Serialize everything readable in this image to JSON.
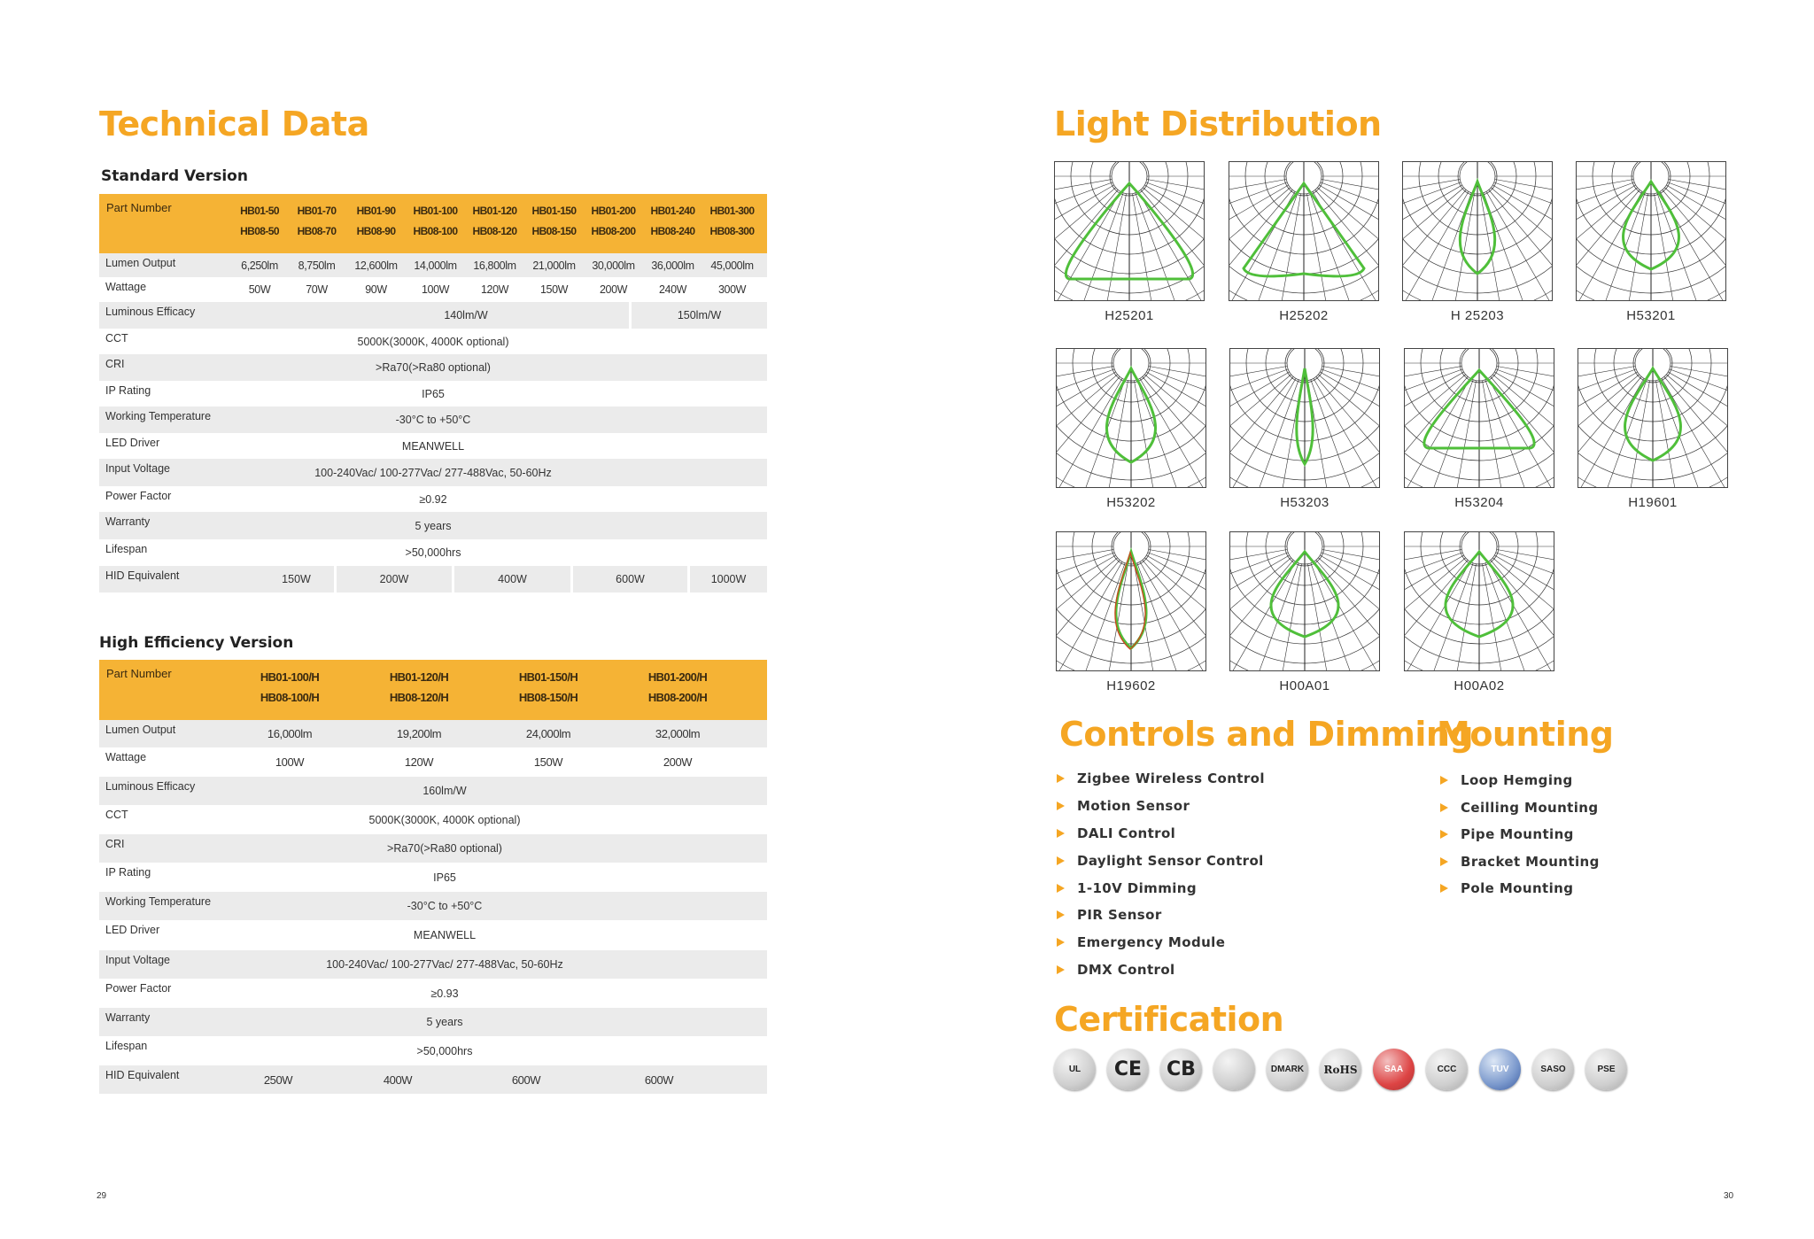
{
  "left": {
    "title": "Technical Data",
    "standard": {
      "title": "Standard Version",
      "part_label": "Part Number",
      "parts_row1": [
        "HB01-50",
        "HB01-70",
        "HB01-90",
        "HB01-100",
        "HB01-120",
        "HB01-150",
        "HB01-200",
        "HB01-240",
        "HB01-300"
      ],
      "parts_row2": [
        "HB08-50",
        "HB08-70",
        "HB08-90",
        "HB08-100",
        "HB08-120",
        "HB08-150",
        "HB08-200",
        "HB08-240",
        "HB08-300"
      ],
      "lumen_label": "Lumen Output",
      "lumen": [
        "6,250lm",
        "8,750lm",
        "12,600lm",
        "14,000lm",
        "16,800lm",
        "21,000lm",
        "30,000lm",
        "36,000lm",
        "45,000lm"
      ],
      "wattage_label": "Wattage",
      "wattage": [
        "50W",
        "70W",
        "90W",
        "100W",
        "120W",
        "150W",
        "200W",
        "240W",
        "300W"
      ],
      "efficacy_label": "Luminous Efficacy",
      "efficacy_a": "140lm/W",
      "efficacy_b": "150lm/W",
      "cct_label": "CCT",
      "cct": "5000K(3000K, 4000K optional)",
      "cri_label": "CRI",
      "cri": ">Ra70(>Ra80 optional)",
      "ip_label": "IP Rating",
      "ip": "IP65",
      "temp_label": "Working Temperature",
      "temp": "-30°C  to  +50°C",
      "driver_label": "LED Driver",
      "driver": "MEANWELL",
      "voltage_label": "Input Voltage",
      "voltage": "100-240Vac/ 100-277Vac/ 277-488Vac, 50-60Hz",
      "pf_label": "Power Factor",
      "pf": "≥0.92",
      "warranty_label": "Warranty",
      "warranty": "5 years",
      "lifespan_label": "Lifespan",
      "lifespan": ">50,000hrs",
      "hid_label": "HID Equivalent",
      "hid": [
        "150W",
        "200W",
        "400W",
        "600W",
        "1000W"
      ]
    },
    "high": {
      "title": "High Efficiency Version",
      "part_label": "Part Number",
      "parts_row1": [
        "HB01-100/H",
        "HB01-120/H",
        "HB01-150/H",
        "HB01-200/H"
      ],
      "parts_row2": [
        "HB08-100/H",
        "HB08-120/H",
        "HB08-150/H",
        "HB08-200/H"
      ],
      "lumen_label": "Lumen Output",
      "lumen": [
        "16,000lm",
        "19,200lm",
        "24,000lm",
        "32,000lm"
      ],
      "wattage_label": "Wattage",
      "wattage": [
        "100W",
        "120W",
        "150W",
        "200W"
      ],
      "efficacy_label": "Luminous Efficacy",
      "efficacy": "160lm/W",
      "cct_label": "CCT",
      "cct": "5000K(3000K, 4000K optional)",
      "cri_label": "CRI",
      "cri": ">Ra70(>Ra80 optional)",
      "ip_label": "IP Rating",
      "ip": "IP65",
      "temp_label": "Working Temperature",
      "temp": "-30°C  to  +50°C",
      "driver_label": "LED Driver",
      "driver": "MEANWELL",
      "voltage_label": "Input Voltage",
      "voltage": "100-240Vac/ 100-277Vac/ 277-488Vac, 50-60Hz",
      "pf_label": "Power Factor",
      "pf": "≥0.93",
      "warranty_label": "Warranty",
      "warranty": "5 years",
      "lifespan_label": "Lifespan",
      "lifespan": ">50,000hrs",
      "hid_label": "HID Equivalent",
      "hid": [
        "250W",
        "400W",
        "600W",
        "600W"
      ]
    },
    "page_number": "29"
  },
  "right": {
    "light_title": "Light Distribution",
    "diagrams": [
      "H25201",
      "H25202",
      "H 25203",
      "H53201",
      "H53202",
      "H53203",
      "H53204",
      "H19601",
      "H19602",
      "H00A01",
      "H00A02"
    ],
    "controls_title": "Controls and Dimming",
    "controls": [
      "Zigbee Wireless Control",
      "Motion Sensor",
      "DALI Control",
      "Daylight Sensor Control",
      "1-10V Dimming",
      "PIR Sensor",
      "Emergency Module",
      "DMX  Control"
    ],
    "mounting_title": "Mounting",
    "mounting": [
      "Loop Hemging",
      "Ceilling Mounting",
      "Pipe Mounting",
      "Bracket Mounting",
      "Pole Mounting"
    ],
    "cert_title": "Certification",
    "certs": [
      "UL",
      "CE",
      "CB",
      "",
      "DMARK",
      "RoHS",
      "SAA",
      "CCC",
      "TUV",
      "SASO",
      "PSE"
    ],
    "page_number": "30",
    "accent": "#F5A623"
  }
}
